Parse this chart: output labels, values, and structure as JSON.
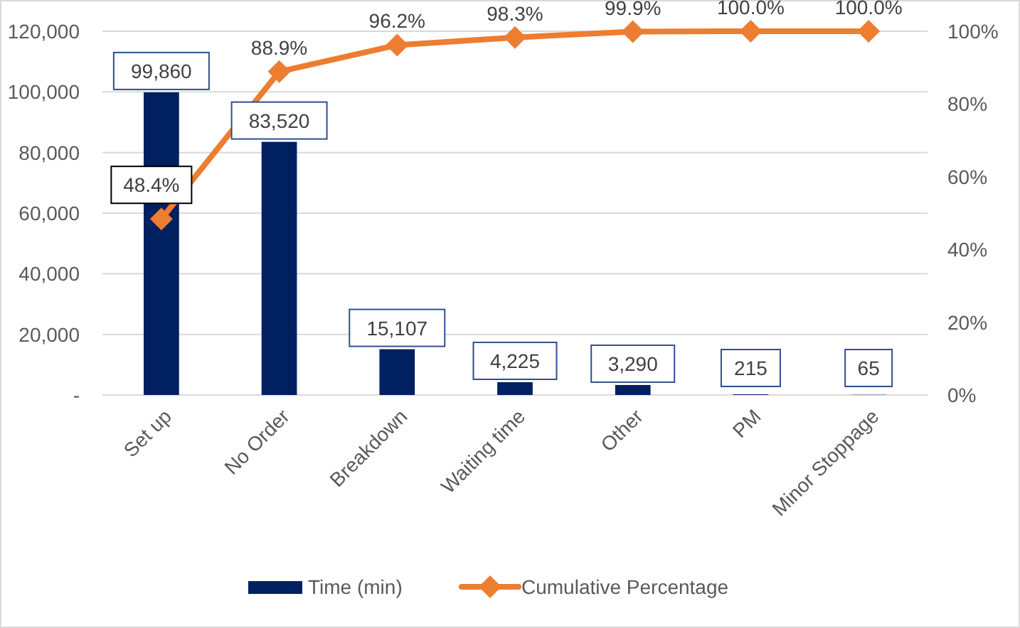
{
  "chart_data": {
    "type": "bar",
    "categories": [
      "Set up",
      "No Order",
      "Breakdown",
      "Waiting time",
      "Other",
      "PM",
      "Minor Stoppage"
    ],
    "series": [
      {
        "name": "Time (min)",
        "color": "#002060",
        "values": [
          99860,
          83520,
          15107,
          4225,
          3290,
          215,
          65
        ],
        "value_labels": [
          "99,860",
          "83,520",
          "15,107",
          "4,225",
          "3,290",
          "215",
          "65"
        ]
      },
      {
        "name": "Cumulative Percentage",
        "type": "line",
        "axis": "y2",
        "color": "#ed7d31",
        "values": [
          48.4,
          88.9,
          96.2,
          98.3,
          99.9,
          100.0,
          100.0
        ],
        "value_labels": [
          "48.4%",
          "88.9%",
          "96.2%",
          "98.3%",
          "99.9%",
          "100.0%",
          "100.0%"
        ]
      }
    ],
    "ylim": [
      0,
      120000
    ],
    "yticks": [
      {
        "value": 0,
        "label": "-"
      },
      {
        "value": 20000,
        "label": "20,000"
      },
      {
        "value": 40000,
        "label": "40,000"
      },
      {
        "value": 60000,
        "label": "60,000"
      },
      {
        "value": 80000,
        "label": "80,000"
      },
      {
        "value": 100000,
        "label": "100,000"
      },
      {
        "value": 120000,
        "label": "120,000"
      }
    ],
    "y2lim": [
      0,
      100
    ],
    "y2ticks": [
      {
        "value": 0,
        "label": "0%"
      },
      {
        "value": 20,
        "label": "20%"
      },
      {
        "value": 40,
        "label": "40%"
      },
      {
        "value": 60,
        "label": "60%"
      },
      {
        "value": 80,
        "label": "80%"
      },
      {
        "value": 100,
        "label": "100%"
      }
    ],
    "grid": "y",
    "legend": "bottom",
    "marker": "diamond",
    "line_style": "solid"
  }
}
